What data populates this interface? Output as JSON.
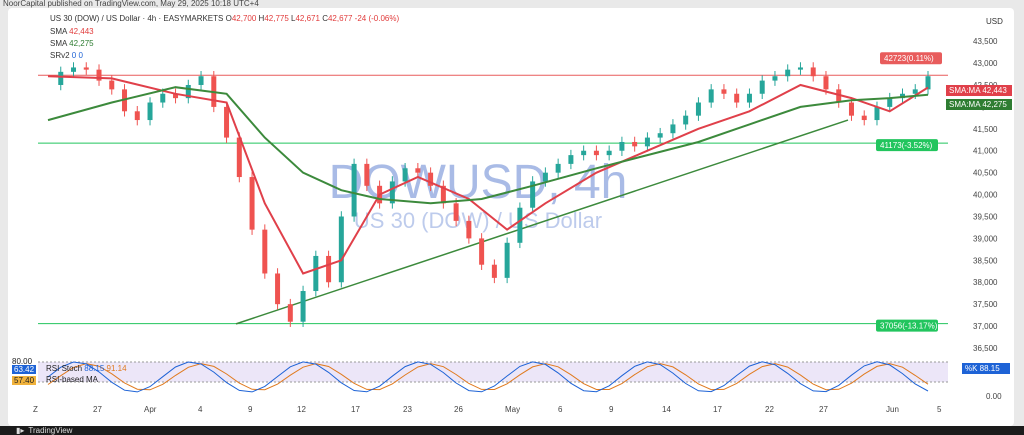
{
  "publisher_line": "NoorCapital published on TradingView.com, May 29, 2025 10:18 UTC+4",
  "footer_brand": "TradingView",
  "header": {
    "symbol": "US 30 (DOW) / US Dollar · 4h · EASYMARKETS",
    "open_label": "O",
    "open": "42,700",
    "high_label": "H",
    "high": "42,775",
    "low_label": "L",
    "low": "42,671",
    "close_label": "C",
    "close": "42,677",
    "change": "-24 (-0.06%)",
    "sma1_label": "SMA",
    "sma1": "42,443",
    "sma2_label": "SMA",
    "sma2": "42,275",
    "srv_label": "SRv2",
    "srv": "0 0",
    "currency": "USD"
  },
  "watermark": {
    "symbol": "DOWUSD, 4h",
    "name": "US 30 (DOW) / US Dollar"
  },
  "colors": {
    "bull": "#26a69a",
    "bear": "#ef5350",
    "sma_fast": "#e0404a",
    "sma_slow": "#3c8a3c",
    "trendline": "#3c8a3c",
    "level_red": "#e06060",
    "level_green": "#2bbf6a"
  },
  "levels": [
    {
      "price": 42723,
      "label": "42723(0.11%)",
      "color": "#e85c5c"
    },
    {
      "price": 41173,
      "label": "41173(-3.52%)",
      "color": "#22c55e"
    },
    {
      "price": 37056,
      "label": "37056(-13.17%)",
      "color": "#22c55e"
    }
  ],
  "ma_tags": [
    {
      "name": "SMA:MA",
      "value": "42,443",
      "color": "#e0404a"
    },
    {
      "name": "SMA:MA",
      "value": "42,275",
      "color": "#2e7d32"
    }
  ],
  "price_axis": [
    "43,500",
    "43,000",
    "42,500",
    "42,000",
    "41,500",
    "41,000",
    "40,500",
    "40,000",
    "39,500",
    "39,000",
    "38,500",
    "38,000",
    "37,500",
    "37,000",
    "36,500"
  ],
  "time_axis": [
    "Z",
    "27",
    "Apr",
    "4",
    "9",
    "12",
    "17",
    "23",
    "26",
    "May",
    "6",
    "9",
    "14",
    "17",
    "22",
    "27",
    "Jun",
    "5"
  ],
  "stoch_legend": {
    "line1": "Stoch",
    "v1": "88.15",
    "v2": "91.14",
    "left1": "63.42",
    "left2": "57.40",
    "rsi_label": "RSI",
    "rsi_based": "RSI-based MA"
  },
  "osc_axis": [
    "80.00",
    "0.00"
  ],
  "osc_tag": {
    "name": "%K",
    "value": "88.15"
  },
  "chart_data": {
    "type": "line",
    "title": "DOWUSD, 4h",
    "ylabel": "USD",
    "ylim": [
      36500,
      43800
    ],
    "series": [
      {
        "name": "Close",
        "points": [
          [
            0,
            42500
          ],
          [
            1,
            42800
          ],
          [
            2,
            42900
          ],
          [
            3,
            42850
          ],
          [
            4,
            42600
          ],
          [
            5,
            42400
          ],
          [
            6,
            41900
          ],
          [
            7,
            41700
          ],
          [
            8,
            42100
          ],
          [
            9,
            42300
          ],
          [
            10,
            42200
          ],
          [
            11,
            42500
          ],
          [
            12,
            42700
          ],
          [
            13,
            42000
          ],
          [
            14,
            41300
          ],
          [
            15,
            40400
          ],
          [
            16,
            39200
          ],
          [
            17,
            38200
          ],
          [
            18,
            37500
          ],
          [
            19,
            37100
          ],
          [
            20,
            37800
          ],
          [
            21,
            38600
          ],
          [
            22,
            38000
          ],
          [
            23,
            39500
          ],
          [
            24,
            40700
          ],
          [
            25,
            40200
          ],
          [
            26,
            39800
          ],
          [
            27,
            40300
          ],
          [
            28,
            40600
          ],
          [
            29,
            40500
          ],
          [
            30,
            40200
          ],
          [
            31,
            39800
          ],
          [
            32,
            39400
          ],
          [
            33,
            39000
          ],
          [
            34,
            38400
          ],
          [
            35,
            38100
          ],
          [
            36,
            38900
          ],
          [
            37,
            39700
          ],
          [
            38,
            40300
          ],
          [
            39,
            40500
          ],
          [
            40,
            40700
          ],
          [
            41,
            40900
          ],
          [
            42,
            41000
          ],
          [
            43,
            40900
          ],
          [
            44,
            41000
          ],
          [
            45,
            41200
          ],
          [
            46,
            41100
          ],
          [
            47,
            41300
          ],
          [
            48,
            41400
          ],
          [
            49,
            41600
          ],
          [
            50,
            41800
          ],
          [
            51,
            42100
          ],
          [
            52,
            42400
          ],
          [
            53,
            42300
          ],
          [
            54,
            42100
          ],
          [
            55,
            42300
          ],
          [
            56,
            42600
          ],
          [
            57,
            42700
          ],
          [
            58,
            42850
          ],
          [
            59,
            42900
          ],
          [
            60,
            42700
          ],
          [
            61,
            42400
          ],
          [
            62,
            42100
          ],
          [
            63,
            41800
          ],
          [
            64,
            41700
          ],
          [
            65,
            42000
          ],
          [
            66,
            42200
          ],
          [
            67,
            42300
          ],
          [
            68,
            42400
          ],
          [
            69,
            42700
          ]
        ]
      },
      {
        "name": "SMA",
        "points": [
          [
            0,
            42700
          ],
          [
            5,
            42650
          ],
          [
            10,
            42300
          ],
          [
            14,
            42100
          ],
          [
            17,
            39800
          ],
          [
            20,
            38200
          ],
          [
            23,
            38500
          ],
          [
            26,
            40000
          ],
          [
            29,
            40400
          ],
          [
            33,
            39900
          ],
          [
            36,
            39200
          ],
          [
            39,
            39800
          ],
          [
            43,
            40500
          ],
          [
            47,
            41000
          ],
          [
            51,
            41500
          ],
          [
            55,
            41900
          ],
          [
            59,
            42500
          ],
          [
            63,
            42200
          ],
          [
            66,
            41900
          ],
          [
            69,
            42443
          ]
        ]
      },
      {
        "name": "SMA",
        "points": [
          [
            0,
            41700
          ],
          [
            5,
            42100
          ],
          [
            10,
            42450
          ],
          [
            14,
            42300
          ],
          [
            17,
            41300
          ],
          [
            20,
            40500
          ],
          [
            23,
            40100
          ],
          [
            26,
            39900
          ],
          [
            30,
            39800
          ],
          [
            34,
            39900
          ],
          [
            38,
            40200
          ],
          [
            43,
            40600
          ],
          [
            47,
            40900
          ],
          [
            51,
            41200
          ],
          [
            55,
            41600
          ],
          [
            59,
            42000
          ],
          [
            63,
            42150
          ],
          [
            66,
            42200
          ],
          [
            69,
            42275
          ]
        ]
      }
    ],
    "oscillator": {
      "name": "Stoch",
      "ylim": [
        0,
        100
      ],
      "k_last": 88.15,
      "d_last": 91.14
    }
  }
}
